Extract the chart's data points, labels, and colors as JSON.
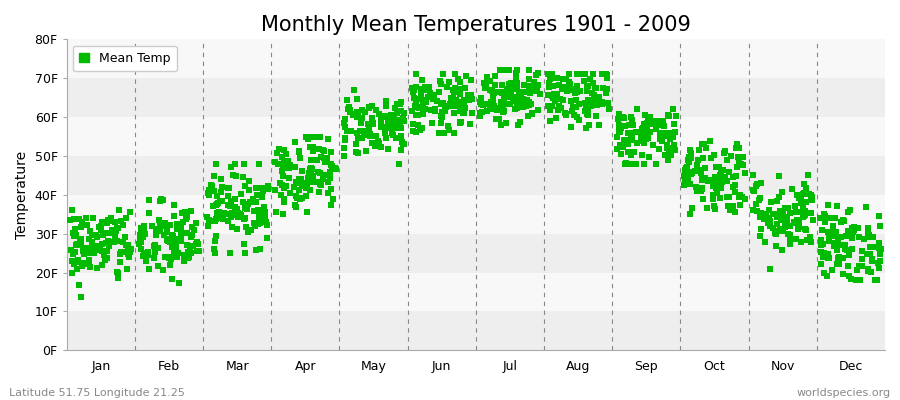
{
  "title": "Monthly Mean Temperatures 1901 - 2009",
  "ylabel": "Temperature",
  "ylim": [
    0,
    80
  ],
  "yticks": [
    0,
    10,
    20,
    30,
    40,
    50,
    60,
    70,
    80
  ],
  "ytick_labels": [
    "0F",
    "10F",
    "20F",
    "30F",
    "40F",
    "50F",
    "60F",
    "70F",
    "80F"
  ],
  "months": [
    "Jan",
    "Feb",
    "Mar",
    "Apr",
    "May",
    "Jun",
    "Jul",
    "Aug",
    "Sep",
    "Oct",
    "Nov",
    "Dec"
  ],
  "dot_color": "#00bb00",
  "legend_label": "Mean Temp",
  "footer_left": "Latitude 51.75 Longitude 21.25",
  "footer_right": "worldspecies.org",
  "bg_color": "#ffffff",
  "plot_bg_color": "#ffffff",
  "band_color_a": "#eeeeee",
  "band_color_b": "#f8f8f8",
  "month_means": [
    27,
    28,
    37,
    46,
    58,
    63,
    66,
    65,
    55,
    45,
    35,
    27
  ],
  "month_stds": [
    5,
    5,
    5,
    5,
    4,
    4,
    4,
    4,
    4,
    5,
    5,
    5
  ],
  "month_mins": [
    9,
    11,
    25,
    35,
    48,
    56,
    58,
    57,
    48,
    35,
    19,
    18
  ],
  "month_maxs": [
    36,
    39,
    48,
    55,
    67,
    71,
    72,
    71,
    62,
    57,
    45,
    38
  ],
  "n_years": 109,
  "title_fontsize": 15,
  "axis_fontsize": 10,
  "tick_fontsize": 9,
  "footer_fontsize": 8,
  "legend_fontsize": 9,
  "marker_size": 18
}
